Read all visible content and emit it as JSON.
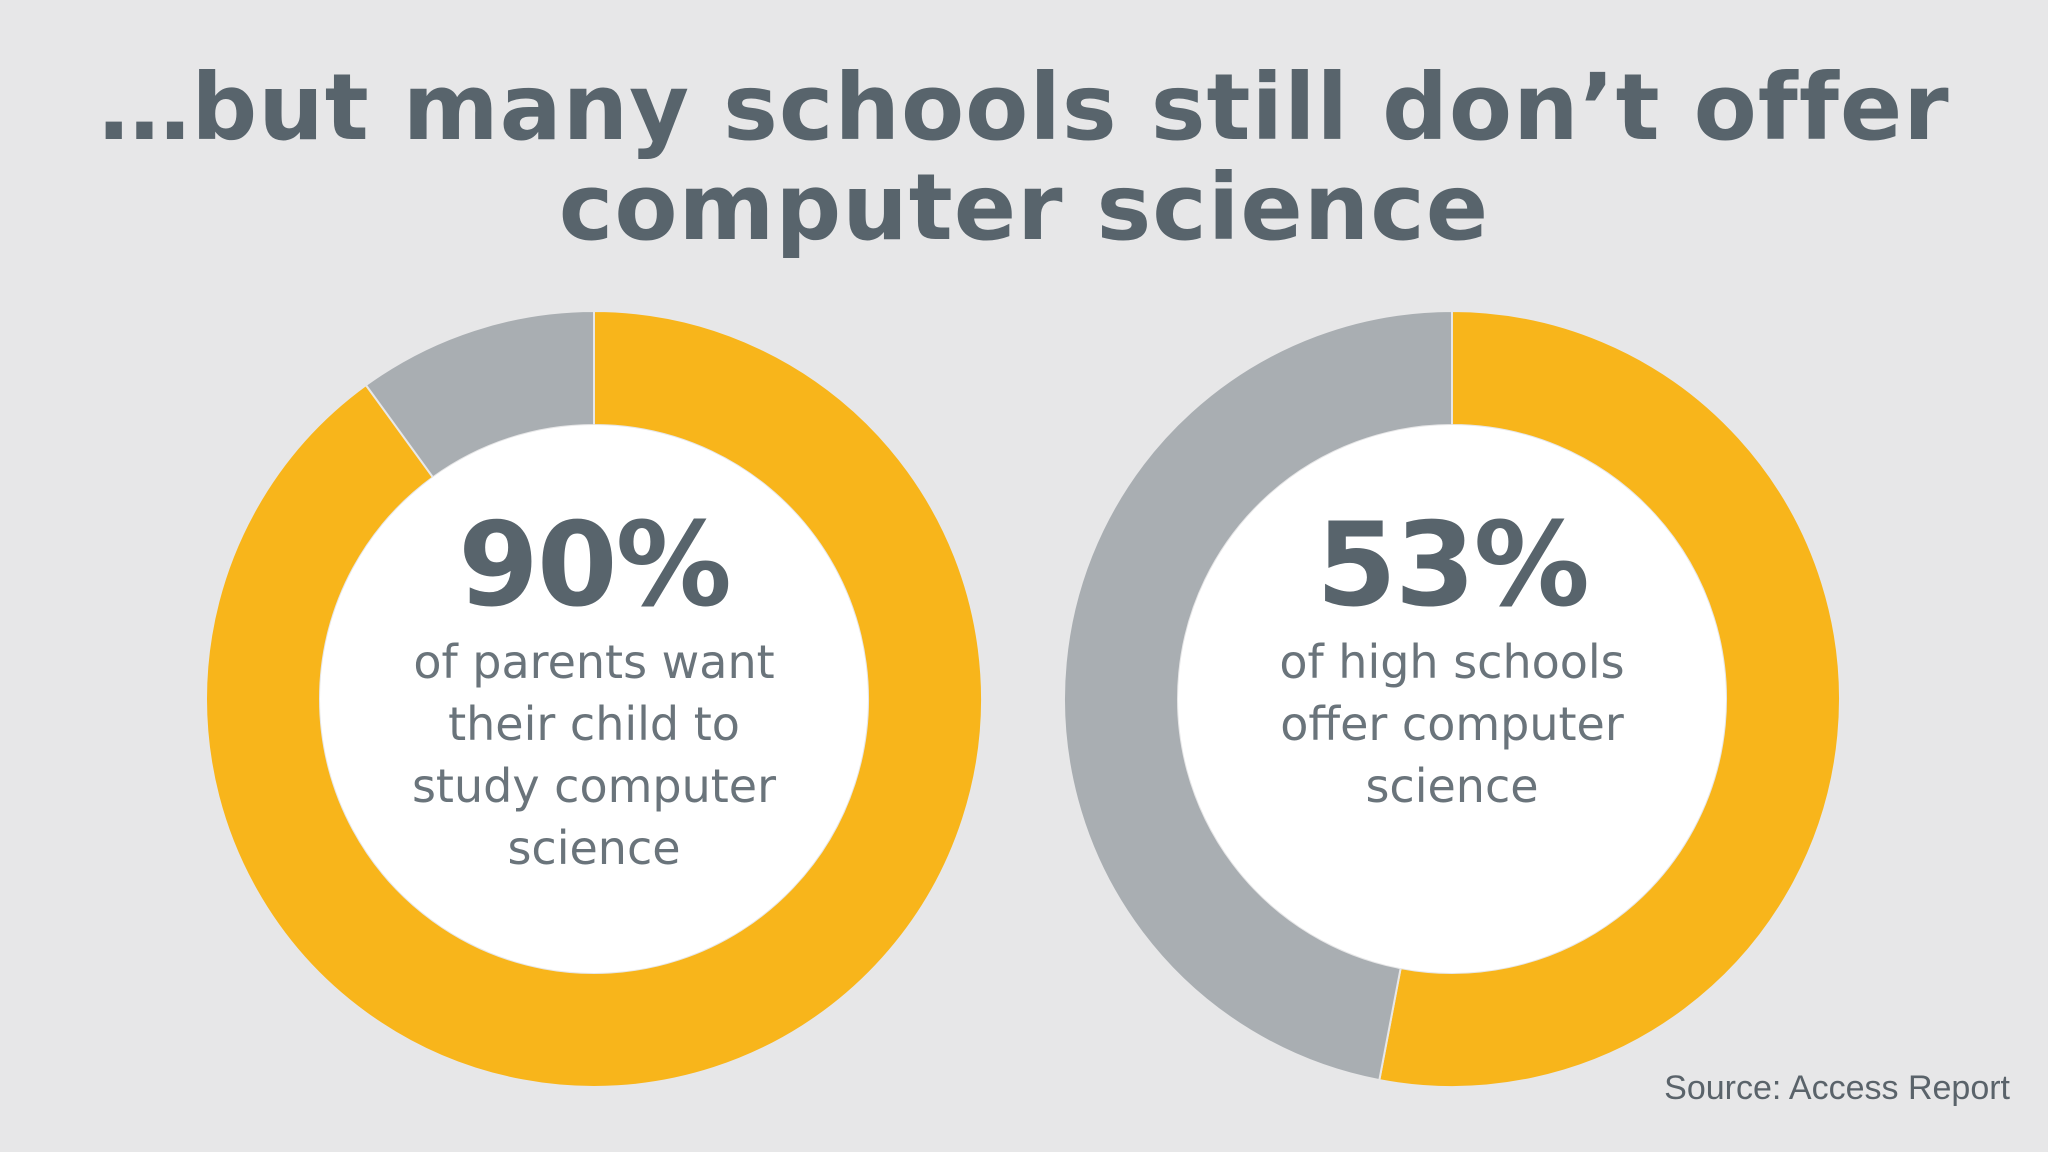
{
  "title": {
    "line1": "…but many schools still don’t offer",
    "line2": "computer science"
  },
  "source": "Source: Access Report",
  "colors": {
    "background": "#e7e7e8",
    "accent": "#f8b51b",
    "remainder": "#a9aeb2",
    "text": "#58646c"
  },
  "chart_data": [
    {
      "type": "pie",
      "variant": "donut",
      "values": [
        90,
        10
      ],
      "value_label": "90%",
      "caption": [
        "of parents want",
        "their child to",
        "study computer",
        "science"
      ]
    },
    {
      "type": "pie",
      "variant": "donut",
      "values": [
        53,
        47
      ],
      "value_label": "53%",
      "caption": [
        "of high schools",
        "offer computer",
        "science"
      ]
    }
  ]
}
